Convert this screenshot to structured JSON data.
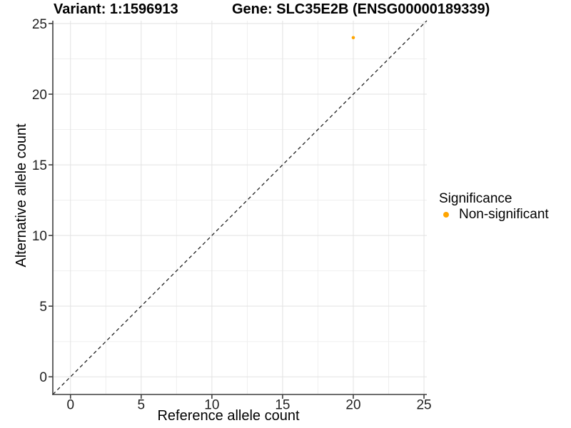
{
  "figure": {
    "title_left": "Variant: 1:1596913",
    "title_right": "Gene: SLC35E2B (ENSG00000189339)"
  },
  "chart_data": {
    "type": "scatter",
    "title": "Variant: 1:1596913   Gene: SLC35E2B (ENSG00000189339)",
    "xlabel": "Reference allele count",
    "ylabel": "Alternative allele count",
    "xlim": [
      -1.25,
      25.2
    ],
    "ylim": [
      -1.25,
      25.2
    ],
    "xticks": [
      0,
      5,
      10,
      15,
      20,
      25
    ],
    "yticks": [
      0,
      5,
      10,
      15,
      20,
      25
    ],
    "x_minor_ticks": [
      2.5,
      7.5,
      12.5,
      17.5,
      22.5
    ],
    "y_minor_ticks": [
      2.5,
      7.5,
      12.5,
      17.5,
      22.5
    ],
    "grid": true,
    "legend_position": "right",
    "points": [
      {
        "x": 20,
        "y": 24,
        "series": "Non-significant"
      }
    ],
    "reference_line": {
      "type": "abline",
      "slope": 1,
      "intercept": 0,
      "style": "dashed",
      "color": "#111111"
    },
    "legend": {
      "title": "Significance",
      "items": [
        {
          "label": "Non-significant",
          "color": "#FFA500"
        }
      ]
    }
  },
  "style": {
    "major_grid_color": "#E2E2E2",
    "minor_grid_color": "#EFEFEF",
    "axis_line_color": "#3F3F3F",
    "tick_color": "#3F3F3F",
    "point_radius": 2.3
  }
}
